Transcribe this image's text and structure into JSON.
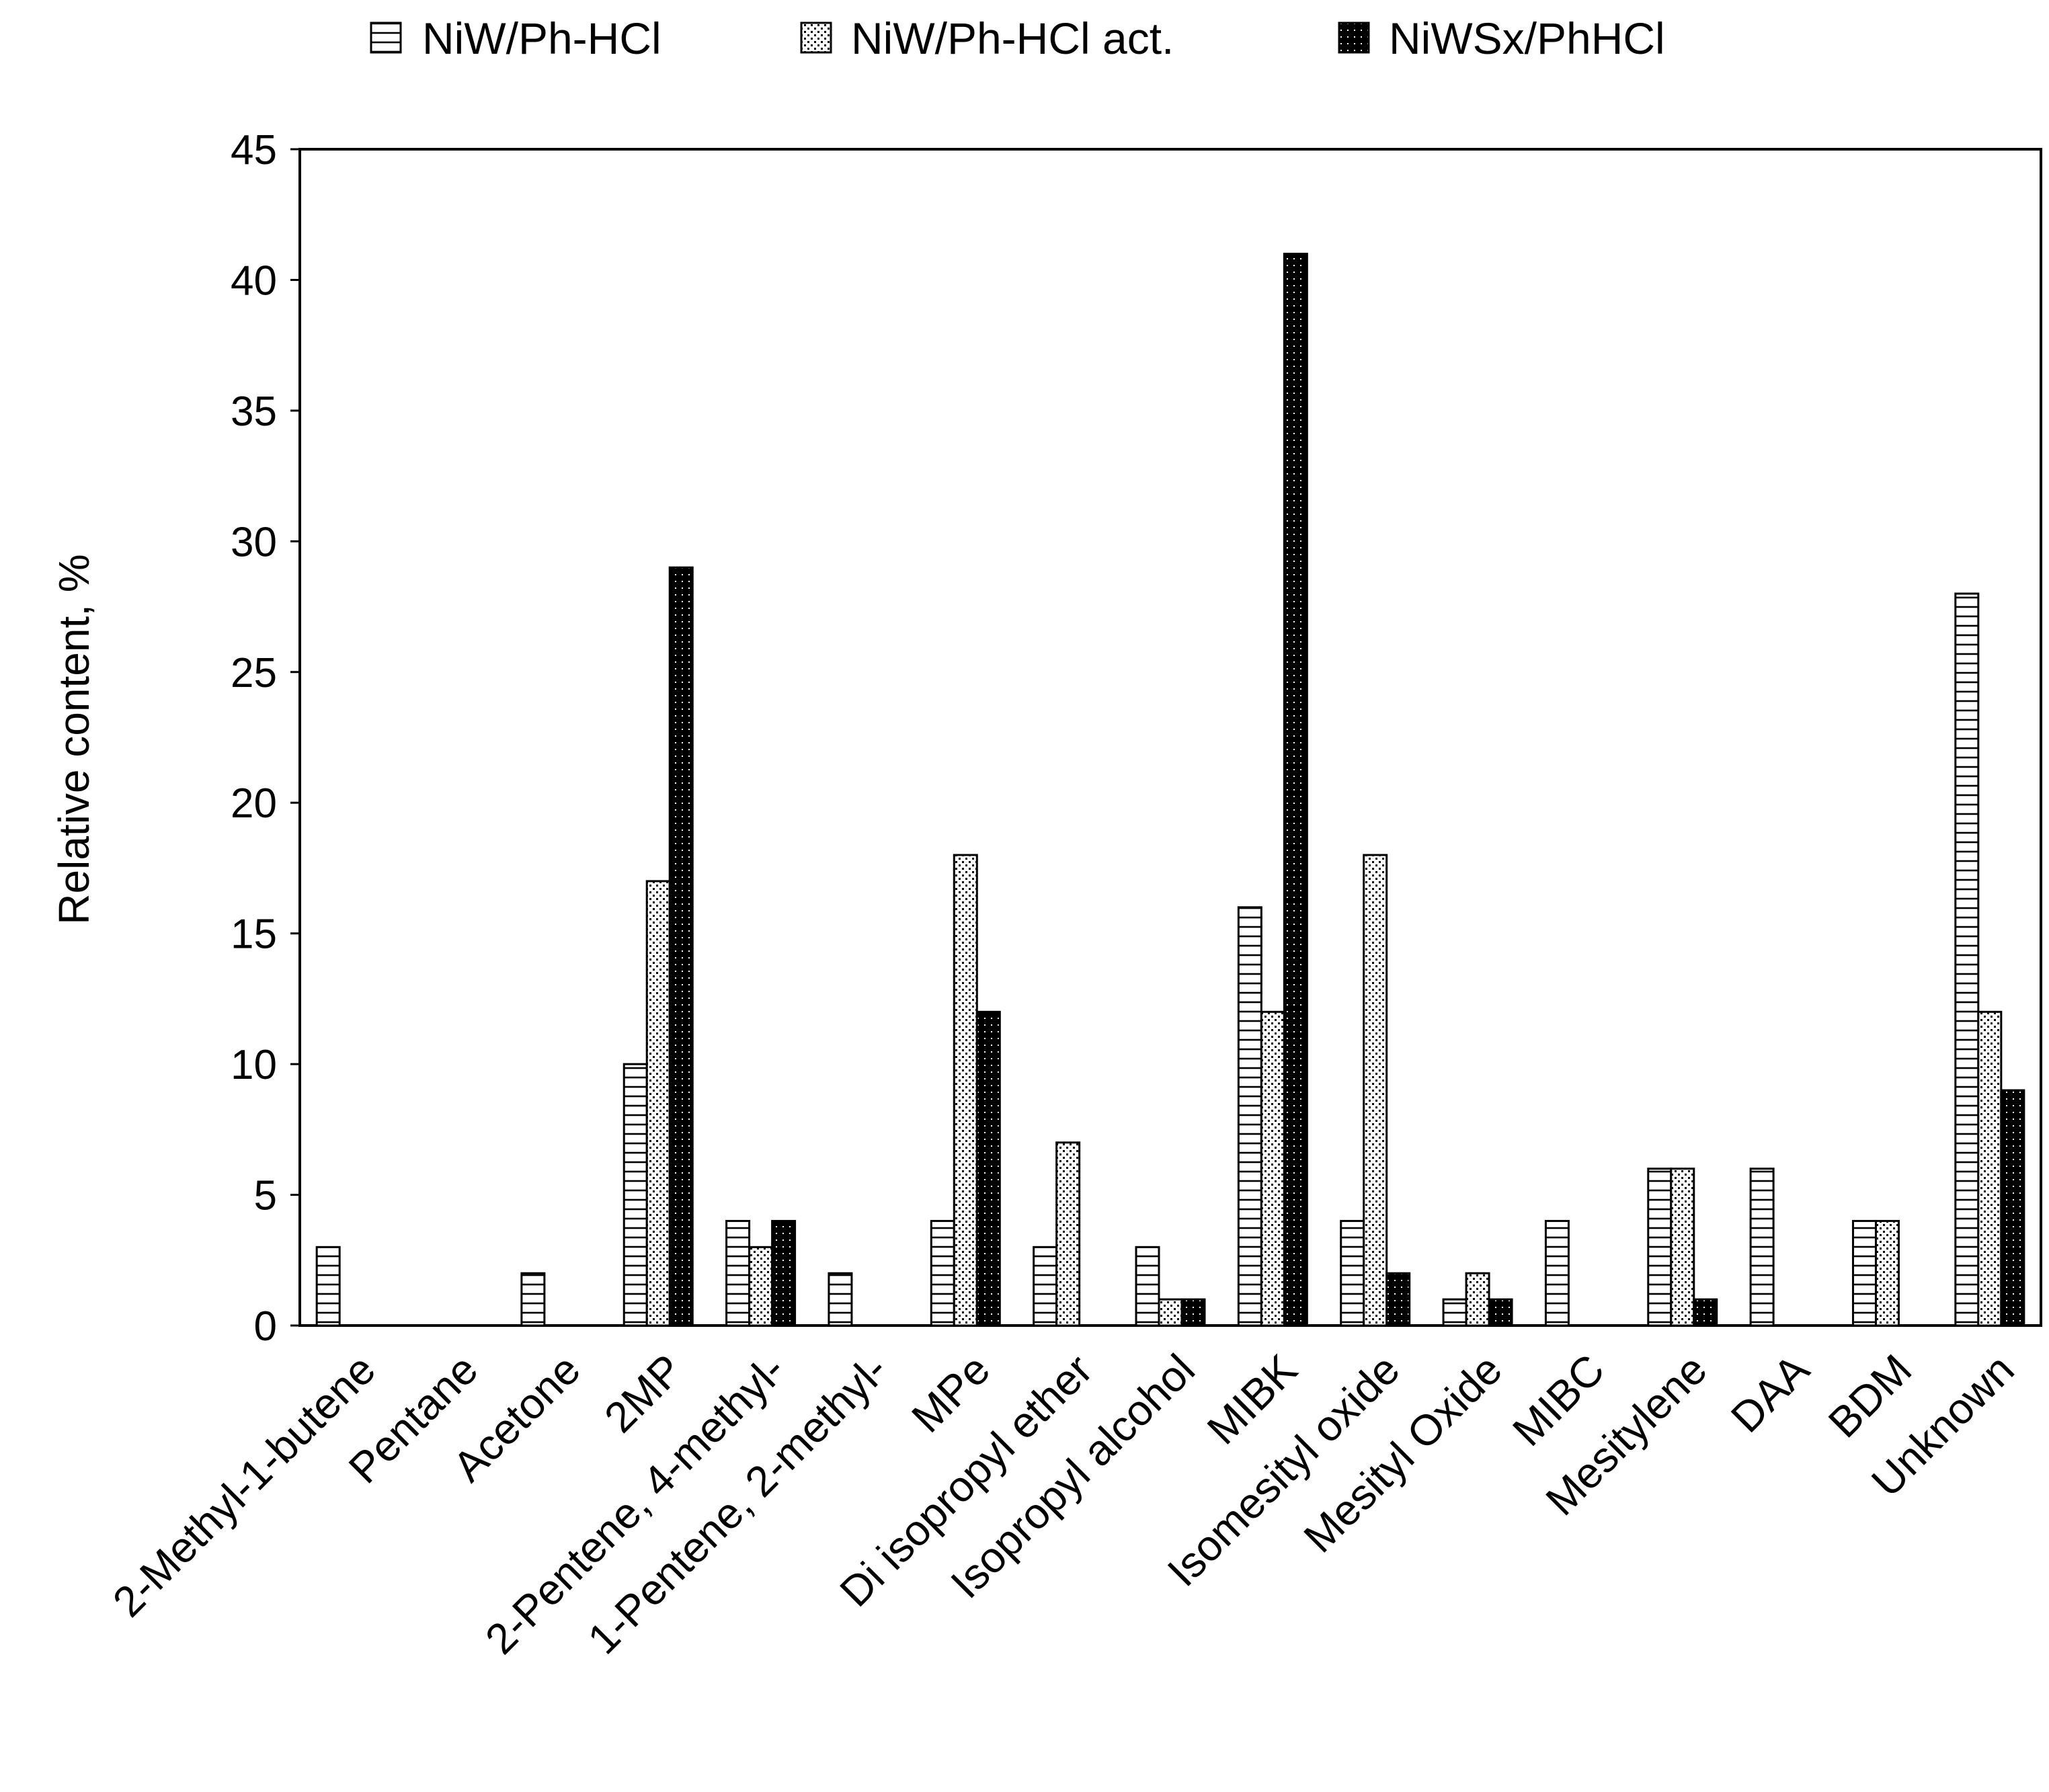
{
  "chart_data": {
    "type": "bar",
    "title": "",
    "xlabel": "",
    "ylabel": "Relative content, %",
    "ylim": [
      0,
      45
    ],
    "yticks": [
      0,
      5,
      10,
      15,
      20,
      25,
      30,
      35,
      40,
      45
    ],
    "legend_position": "top",
    "categories": [
      "2-Methyl-1-butene",
      "Pentane",
      "Acetone",
      "2MP",
      "2-Pentene, 4-methyl-",
      "1-Pentene, 2-methyl-",
      "MPe",
      "Di isopropyl ether",
      "Isopropyl alcohol",
      "MIBK",
      "Isomesityl oxide",
      "Mesityl Oxide",
      "MIBC",
      "Mesitylene",
      "DAA",
      "BDM",
      "Unknown"
    ],
    "series": [
      {
        "name": "NiW/Ph-HCl",
        "pattern": "horizontal-lines",
        "values": [
          3,
          0,
          2,
          10,
          4,
          2,
          4,
          3,
          3,
          16,
          4,
          1,
          4,
          6,
          6,
          4,
          28
        ]
      },
      {
        "name": "NiW/Ph-HCl act.",
        "pattern": "dots",
        "values": [
          0,
          0,
          0,
          17,
          3,
          0,
          18,
          7,
          1,
          12,
          18,
          2,
          0,
          6,
          0,
          4,
          12
        ]
      },
      {
        "name": "NiWSx/PhHCl",
        "pattern": "black",
        "values": [
          0,
          0,
          0,
          29,
          4,
          0,
          12,
          0,
          1,
          41,
          2,
          1,
          0,
          1,
          0,
          0,
          9
        ]
      }
    ]
  }
}
